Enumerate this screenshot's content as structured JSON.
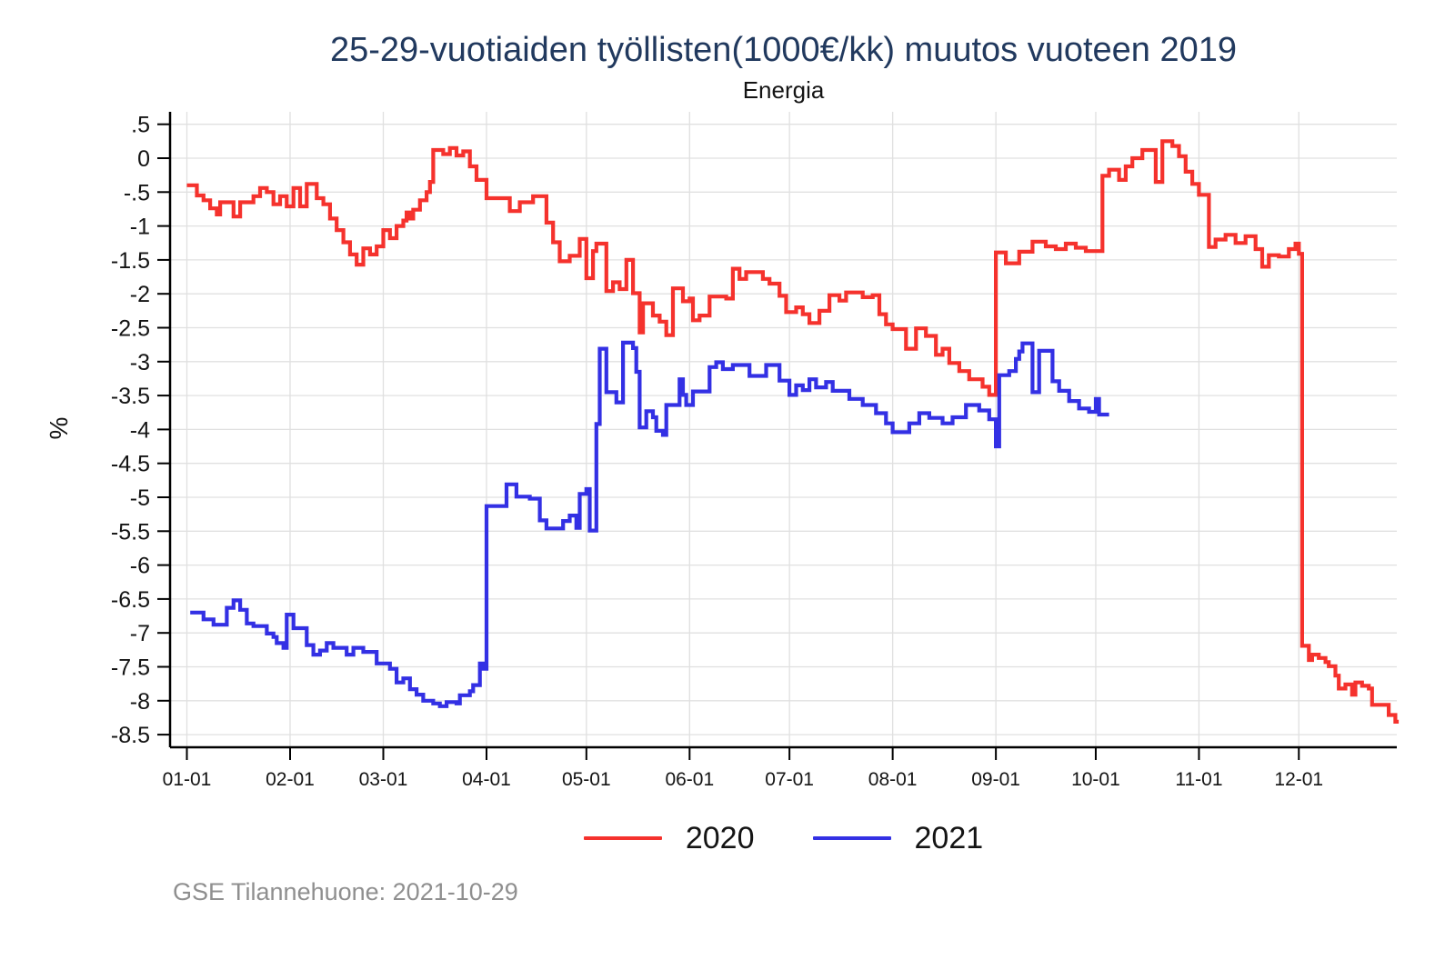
{
  "header": {
    "title": "25-29-vuotiaiden työllisten(1000€/kk) muutos vuoteen 2019",
    "subtitle": "Energia"
  },
  "footer": {
    "source_label": "GSE Tilannehuone: 2021-10-29"
  },
  "colors": {
    "series_2020": "#f5322d",
    "series_2021": "#3330e4",
    "grid": "#e0e0e0",
    "axis": "#000000",
    "title_text": "#21395e",
    "footer_text": "#8f8f8f"
  },
  "legend": {
    "items": [
      {
        "label": "2020",
        "color": "#f5322d"
      },
      {
        "label": "2021",
        "color": "#3330e4"
      }
    ]
  },
  "chart_data": {
    "type": "line",
    "step": true,
    "title": "25-29-vuotiaiden työllisten(1000€/kk) muutos vuoteen 2019",
    "subtitle": "Energia",
    "xlabel": "",
    "ylabel": "%",
    "ylim": [
      -8.5,
      0.5
    ],
    "grid": true,
    "legend_position": "bottom",
    "y_ticks": {
      "labels": [
        ".5",
        "0",
        "-.5",
        "-1",
        "-1.5",
        "-2",
        "-2.5",
        "-3",
        "-3.5",
        "-4",
        "-4.5",
        "-5",
        "-5.5",
        "-6",
        "-6.5",
        "-7",
        "-7.5",
        "-8",
        "-8.5"
      ],
      "values": [
        0.5,
        0,
        -0.5,
        -1,
        -1.5,
        -2,
        -2.5,
        -3,
        -3.5,
        -4,
        -4.5,
        -5,
        -5.5,
        -6,
        -6.5,
        -7,
        -7.5,
        -8,
        -8.5
      ]
    },
    "x_ticks": {
      "labels": [
        "01-01",
        "02-01",
        "03-01",
        "04-01",
        "05-01",
        "06-01",
        "07-01",
        "08-01",
        "09-01",
        "10-01",
        "11-01",
        "12-01"
      ],
      "days": [
        0,
        31,
        59,
        90,
        120,
        151,
        181,
        212,
        243,
        273,
        304,
        334
      ]
    },
    "x_domain_days": [
      0,
      366
    ],
    "series": [
      {
        "name": "2020",
        "color": "#f5322d",
        "end_day": 364,
        "points": [
          [
            0,
            -0.4
          ],
          [
            3,
            -0.55
          ],
          [
            5,
            -0.62
          ],
          [
            7,
            -0.74
          ],
          [
            9,
            -0.83
          ],
          [
            10,
            -0.65
          ],
          [
            14,
            -0.86
          ],
          [
            16,
            -0.65
          ],
          [
            20,
            -0.56
          ],
          [
            22,
            -0.44
          ],
          [
            24,
            -0.5
          ],
          [
            26,
            -0.68
          ],
          [
            28,
            -0.56
          ],
          [
            30,
            -0.71
          ],
          [
            32,
            -0.44
          ],
          [
            34,
            -0.71
          ],
          [
            36,
            -0.38
          ],
          [
            39,
            -0.59
          ],
          [
            41,
            -0.68
          ],
          [
            43,
            -0.89
          ],
          [
            45,
            -1.06
          ],
          [
            47,
            -1.24
          ],
          [
            49,
            -1.42
          ],
          [
            51,
            -1.57
          ],
          [
            53,
            -1.33
          ],
          [
            55,
            -1.42
          ],
          [
            57,
            -1.3
          ],
          [
            59,
            -1.06
          ],
          [
            61,
            -1.18
          ],
          [
            63,
            -1.0
          ],
          [
            65,
            -0.92
          ],
          [
            66,
            -0.8
          ],
          [
            67,
            -0.89
          ],
          [
            68,
            -0.76
          ],
          [
            70,
            -0.62
          ],
          [
            72,
            -0.5
          ],
          [
            73,
            -0.35
          ],
          [
            74,
            0.12
          ],
          [
            77,
            0.06
          ],
          [
            79,
            0.15
          ],
          [
            81,
            0.04
          ],
          [
            83,
            0.1
          ],
          [
            85,
            -0.12
          ],
          [
            87,
            -0.32
          ],
          [
            90,
            -0.59
          ],
          [
            97,
            -0.78
          ],
          [
            100,
            -0.65
          ],
          [
            104,
            -0.56
          ],
          [
            108,
            -0.95
          ],
          [
            110,
            -1.24
          ],
          [
            112,
            -1.52
          ],
          [
            115,
            -1.44
          ],
          [
            118,
            -1.19
          ],
          [
            120,
            -1.77
          ],
          [
            122,
            -1.37
          ],
          [
            123,
            -1.26
          ],
          [
            126,
            -1.96
          ],
          [
            128,
            -1.83
          ],
          [
            130,
            -1.93
          ],
          [
            132,
            -1.5
          ],
          [
            134,
            -1.99
          ],
          [
            136,
            -2.57
          ],
          [
            137,
            -2.14
          ],
          [
            140,
            -2.32
          ],
          [
            142,
            -2.41
          ],
          [
            144,
            -2.61
          ],
          [
            146,
            -1.92
          ],
          [
            149,
            -2.11
          ],
          [
            151,
            -2.07
          ],
          [
            152,
            -2.39
          ],
          [
            154,
            -2.32
          ],
          [
            157,
            -2.04
          ],
          [
            162,
            -2.07
          ],
          [
            164,
            -1.63
          ],
          [
            166,
            -1.78
          ],
          [
            168,
            -1.68
          ],
          [
            173,
            -1.78
          ],
          [
            175,
            -1.85
          ],
          [
            178,
            -2.03
          ],
          [
            180,
            -2.27
          ],
          [
            183,
            -2.2
          ],
          [
            185,
            -2.3
          ],
          [
            187,
            -2.43
          ],
          [
            190,
            -2.25
          ],
          [
            193,
            -2.02
          ],
          [
            196,
            -2.1
          ],
          [
            198,
            -1.98
          ],
          [
            203,
            -2.05
          ],
          [
            206,
            -2.02
          ],
          [
            208,
            -2.3
          ],
          [
            210,
            -2.45
          ],
          [
            212,
            -2.52
          ],
          [
            216,
            -2.81
          ],
          [
            219,
            -2.51
          ],
          [
            222,
            -2.62
          ],
          [
            225,
            -2.9
          ],
          [
            227,
            -2.81
          ],
          [
            229,
            -3.02
          ],
          [
            232,
            -3.14
          ],
          [
            235,
            -3.26
          ],
          [
            239,
            -3.37
          ],
          [
            241,
            -3.49
          ],
          [
            243,
            -1.39
          ],
          [
            246,
            -1.55
          ],
          [
            250,
            -1.38
          ],
          [
            254,
            -1.23
          ],
          [
            258,
            -1.3
          ],
          [
            261,
            -1.34
          ],
          [
            264,
            -1.26
          ],
          [
            267,
            -1.32
          ],
          [
            270,
            -1.37
          ],
          [
            275,
            -0.26
          ],
          [
            277,
            -0.17
          ],
          [
            280,
            -0.32
          ],
          [
            282,
            -0.12
          ],
          [
            284,
            0.0
          ],
          [
            287,
            0.12
          ],
          [
            291,
            -0.35
          ],
          [
            293,
            0.25
          ],
          [
            296,
            0.18
          ],
          [
            298,
            0.03
          ],
          [
            300,
            -0.2
          ],
          [
            302,
            -0.38
          ],
          [
            304,
            -0.54
          ],
          [
            307,
            -1.31
          ],
          [
            309,
            -1.2
          ],
          [
            312,
            -1.13
          ],
          [
            315,
            -1.25
          ],
          [
            318,
            -1.15
          ],
          [
            321,
            -1.34
          ],
          [
            323,
            -1.6
          ],
          [
            325,
            -1.43
          ],
          [
            328,
            -1.45
          ],
          [
            331,
            -1.34
          ],
          [
            333,
            -1.26
          ],
          [
            334,
            -1.41
          ],
          [
            335,
            -7.19
          ],
          [
            337,
            -7.4
          ],
          [
            338,
            -7.32
          ],
          [
            340,
            -7.37
          ],
          [
            342,
            -7.43
          ],
          [
            343,
            -7.49
          ],
          [
            345,
            -7.63
          ],
          [
            346,
            -7.82
          ],
          [
            348,
            -7.76
          ],
          [
            350,
            -7.91
          ],
          [
            351,
            -7.73
          ],
          [
            353,
            -7.78
          ],
          [
            355,
            -7.82
          ],
          [
            356,
            -8.06
          ],
          [
            361,
            -8.21
          ],
          [
            363,
            -8.31
          ]
        ]
      },
      {
        "name": "2021",
        "color": "#3330e4",
        "end_day": 277,
        "points": [
          [
            1,
            -6.7
          ],
          [
            5,
            -6.8
          ],
          [
            8,
            -6.88
          ],
          [
            12,
            -6.63
          ],
          [
            14,
            -6.52
          ],
          [
            16,
            -6.66
          ],
          [
            18,
            -6.86
          ],
          [
            20,
            -6.9
          ],
          [
            24,
            -7.01
          ],
          [
            26,
            -7.06
          ],
          [
            27,
            -7.15
          ],
          [
            29,
            -7.22
          ],
          [
            30,
            -6.73
          ],
          [
            32,
            -6.93
          ],
          [
            36,
            -7.18
          ],
          [
            38,
            -7.32
          ],
          [
            40,
            -7.26
          ],
          [
            42,
            -7.15
          ],
          [
            44,
            -7.22
          ],
          [
            48,
            -7.32
          ],
          [
            50,
            -7.22
          ],
          [
            53,
            -7.28
          ],
          [
            57,
            -7.45
          ],
          [
            61,
            -7.53
          ],
          [
            63,
            -7.73
          ],
          [
            65,
            -7.67
          ],
          [
            67,
            -7.83
          ],
          [
            69,
            -7.91
          ],
          [
            71,
            -8.0
          ],
          [
            74,
            -8.04
          ],
          [
            76,
            -8.08
          ],
          [
            78,
            -8.02
          ],
          [
            81,
            -8.04
          ],
          [
            82,
            -7.92
          ],
          [
            85,
            -7.86
          ],
          [
            86,
            -7.77
          ],
          [
            88,
            -7.45
          ],
          [
            89,
            -7.53
          ],
          [
            90,
            -5.13
          ],
          [
            96,
            -4.81
          ],
          [
            99,
            -4.99
          ],
          [
            103,
            -5.02
          ],
          [
            106,
            -5.34
          ],
          [
            108,
            -5.46
          ],
          [
            113,
            -5.35
          ],
          [
            115,
            -5.27
          ],
          [
            117,
            -5.45
          ],
          [
            118,
            -4.95
          ],
          [
            120,
            -4.88
          ],
          [
            121,
            -5.49
          ],
          [
            123,
            -3.92
          ],
          [
            124,
            -2.81
          ],
          [
            126,
            -3.45
          ],
          [
            129,
            -3.6
          ],
          [
            131,
            -2.72
          ],
          [
            134,
            -2.8
          ],
          [
            135,
            -3.15
          ],
          [
            136,
            -3.97
          ],
          [
            138,
            -3.73
          ],
          [
            140,
            -3.82
          ],
          [
            141,
            -4.02
          ],
          [
            143,
            -4.08
          ],
          [
            144,
            -3.64
          ],
          [
            148,
            -3.26
          ],
          [
            149,
            -3.49
          ],
          [
            150,
            -3.64
          ],
          [
            152,
            -3.44
          ],
          [
            157,
            -3.08
          ],
          [
            159,
            -3.01
          ],
          [
            161,
            -3.11
          ],
          [
            164,
            -3.05
          ],
          [
            169,
            -3.21
          ],
          [
            174,
            -3.05
          ],
          [
            178,
            -3.28
          ],
          [
            181,
            -3.49
          ],
          [
            183,
            -3.35
          ],
          [
            185,
            -3.42
          ],
          [
            187,
            -3.26
          ],
          [
            189,
            -3.38
          ],
          [
            192,
            -3.3
          ],
          [
            194,
            -3.43
          ],
          [
            199,
            -3.55
          ],
          [
            203,
            -3.64
          ],
          [
            207,
            -3.76
          ],
          [
            210,
            -3.91
          ],
          [
            212,
            -4.04
          ],
          [
            217,
            -3.91
          ],
          [
            220,
            -3.76
          ],
          [
            223,
            -3.83
          ],
          [
            227,
            -3.91
          ],
          [
            230,
            -3.82
          ],
          [
            234,
            -3.64
          ],
          [
            238,
            -3.72
          ],
          [
            241,
            -3.85
          ],
          [
            243,
            -4.25
          ],
          [
            244,
            -3.2
          ],
          [
            247,
            -3.14
          ],
          [
            249,
            -2.96
          ],
          [
            250,
            -2.85
          ],
          [
            251,
            -2.73
          ],
          [
            254,
            -3.45
          ],
          [
            256,
            -2.84
          ],
          [
            260,
            -3.29
          ],
          [
            262,
            -3.43
          ],
          [
            265,
            -3.58
          ],
          [
            268,
            -3.69
          ],
          [
            271,
            -3.74
          ],
          [
            273,
            -3.55
          ],
          [
            274,
            -3.78
          ]
        ]
      }
    ]
  }
}
